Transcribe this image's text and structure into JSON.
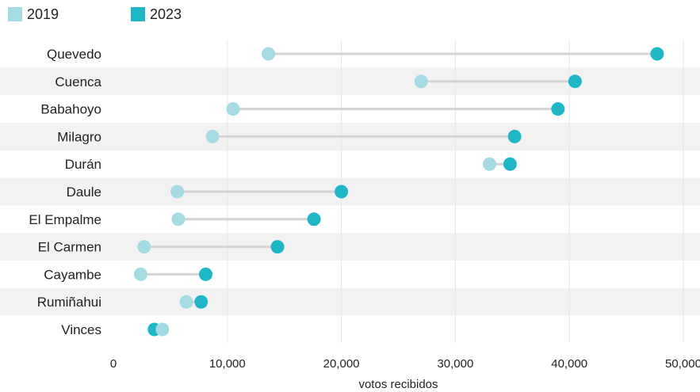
{
  "legend": {
    "items": [
      {
        "label": "2019",
        "color": "#a6dbe4"
      },
      {
        "label": "2023",
        "color": "#1fb7c6"
      }
    ]
  },
  "chart_data": {
    "type": "dumbbell",
    "title": "",
    "xlabel": "votos recibidos",
    "ylabel": "",
    "xlim": [
      0,
      50000
    ],
    "x_ticks": [
      0,
      10000,
      20000,
      30000,
      40000,
      50000
    ],
    "x_tick_labels": [
      "0",
      "10,000",
      "20,000",
      "30,000",
      "40,000",
      "50,000"
    ],
    "grid": "vertical",
    "legend_position": "top-left",
    "categories": [
      "Quevedo",
      "Cuenca",
      "Babahoyo",
      "Milagro",
      "Durán",
      "Daule",
      "El Empalme",
      "El Carmen",
      "Cayambe",
      "Rumiñahui",
      "Vinces"
    ],
    "series": [
      {
        "name": "2019",
        "color": "#a6dbe4",
        "values": [
          13600,
          27000,
          10500,
          8700,
          33000,
          5600,
          5700,
          2700,
          2400,
          6400,
          4300
        ]
      },
      {
        "name": "2023",
        "color": "#1fb7c6",
        "values": [
          47700,
          40500,
          39000,
          35200,
          34800,
          20000,
          17600,
          14400,
          8100,
          7700,
          3600
        ]
      }
    ]
  }
}
